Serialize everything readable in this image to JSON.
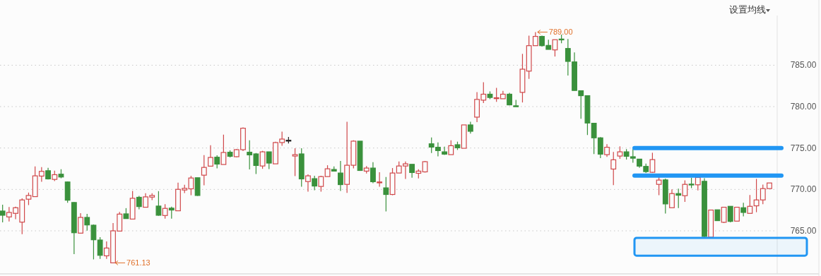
{
  "chart_data": {
    "type": "candlestick",
    "categories": [
      null,
      null,
      null,
      null,
      null,
      null,
      null,
      null,
      null,
      null,
      null,
      null,
      null,
      null,
      null,
      null,
      null,
      null,
      null,
      null,
      null,
      null,
      null,
      null,
      null,
      null,
      null,
      null,
      null,
      null,
      null,
      null,
      null,
      null,
      null,
      null,
      null,
      null,
      null,
      null,
      null,
      null,
      null,
      null,
      null,
      null,
      null,
      null,
      null,
      null,
      null,
      null,
      null,
      null,
      null,
      null,
      null,
      null,
      null,
      null,
      null,
      null,
      null,
      null,
      null,
      null,
      null,
      null,
      null,
      null,
      null,
      null,
      null,
      null,
      null,
      null,
      null,
      null,
      null,
      null,
      null,
      null,
      null,
      null,
      null,
      null,
      null,
      null,
      null,
      null,
      null,
      null,
      null,
      null,
      null,
      null,
      null,
      null,
      null,
      null,
      null,
      null,
      null,
      null,
      null,
      null,
      null,
      null,
      null,
      null,
      null,
      null,
      null,
      null,
      null,
      null,
      null,
      null,
      null
    ],
    "ohlc": [
      [
        767.39,
        768.16,
        766.03,
        766.88
      ],
      [
        766.68,
        767.88,
        766.14,
        767.22
      ],
      [
        767.11,
        767.93,
        766.4,
        767.79
      ],
      [
        766.05,
        768.93,
        764.6,
        768.73
      ],
      [
        768.82,
        769.62,
        768.11,
        769.27
      ],
      [
        769.13,
        772.78,
        769.13,
        771.64
      ],
      [
        771.61,
        772.69,
        770.93,
        772.18
      ],
      [
        772.26,
        772.61,
        771.21,
        771.27
      ],
      [
        771.21,
        772.26,
        771.01,
        771.78
      ],
      [
        771.84,
        772.44,
        771.35,
        771.5
      ],
      [
        770.9,
        770.95,
        768.39,
        768.7
      ],
      [
        768.42,
        768.48,
        762.18,
        764.77
      ],
      [
        764.72,
        767.14,
        764.69,
        766.62
      ],
      [
        766.62,
        767.05,
        765.03,
        765.71
      ],
      [
        765.68,
        765.77,
        761.55,
        763.92
      ],
      [
        763.89,
        764.23,
        761.61,
        762.04
      ],
      [
        761.98,
        763.72,
        761.61,
        762.92
      ],
      [
        761.13,
        765.94,
        761.13,
        765.0
      ],
      [
        764.97,
        767.28,
        764.97,
        767.02
      ],
      [
        767.05,
        767.74,
        766.48,
        766.48
      ],
      [
        766.42,
        769.81,
        766.42,
        768.93
      ],
      [
        769.05,
        769.22,
        767.59,
        767.93
      ],
      [
        767.85,
        769.53,
        767.85,
        769.1
      ],
      [
        769.07,
        769.53,
        768.7,
        769.27
      ],
      [
        767.99,
        769.79,
        766.82,
        766.88
      ],
      [
        766.85,
        768.22,
        766.48,
        767.71
      ],
      [
        767.74,
        767.91,
        766.48,
        767.51
      ],
      [
        767.42,
        770.81,
        767.42,
        770.01
      ],
      [
        769.93,
        770.56,
        769.56,
        770.13
      ],
      [
        770.07,
        771.64,
        769.3,
        771.38
      ],
      [
        771.41,
        771.41,
        769.22,
        769.27
      ],
      [
        771.72,
        774.15,
        770.5,
        772.66
      ],
      [
        772.81,
        775.34,
        772.75,
        773.86
      ],
      [
        773.89,
        774.12,
        772.55,
        773.06
      ],
      [
        773.01,
        776.62,
        773.01,
        774.46
      ],
      [
        774.49,
        774.72,
        773.86,
        774.0
      ],
      [
        773.95,
        774.86,
        773.89,
        774.8
      ],
      [
        774.8,
        777.48,
        774.63,
        777.39
      ],
      [
        774.49,
        775.94,
        772.41,
        774.17
      ],
      [
        774.29,
        774.4,
        771.87,
        772.89
      ],
      [
        772.83,
        774.66,
        772.49,
        774.54
      ],
      [
        774.54,
        774.54,
        772.46,
        773.18
      ],
      [
        773.09,
        775.77,
        773.09,
        775.66
      ],
      [
        775.66,
        776.97,
        775.28,
        776.08
      ],
      [
        775.94,
        776.34,
        775.54,
        775.94
      ],
      [
        774.03,
        774.97,
        771.61,
        774.2
      ],
      [
        774.29,
        774.97,
        770.33,
        771.27
      ],
      [
        770.95,
        771.81,
        769.73,
        771.64
      ],
      [
        771.3,
        771.64,
        769.9,
        770.41
      ],
      [
        770.36,
        771.64,
        769.73,
        771.55
      ],
      [
        771.55,
        772.92,
        771.55,
        772.49
      ],
      [
        772.41,
        772.78,
        772.21,
        772.21
      ],
      [
        771.98,
        773.43,
        769.81,
        770.58
      ],
      [
        770.61,
        778.16,
        769.59,
        772.92
      ],
      [
        772.92,
        775.94,
        772.55,
        775.83
      ],
      [
        775.83,
        775.83,
        772.24,
        772.29
      ],
      [
        772.21,
        772.83,
        771.92,
        772.58
      ],
      [
        772.58,
        773.29,
        770.75,
        770.93
      ],
      [
        770.84,
        772.07,
        770.33,
        770.9
      ],
      [
        770.19,
        771.5,
        767.34,
        769.39
      ],
      [
        769.39,
        772.58,
        769.3,
        771.98
      ],
      [
        771.98,
        773.38,
        771.98,
        772.83
      ],
      [
        772.83,
        773.38,
        771.27,
        773.09
      ],
      [
        773.03,
        773.03,
        771.41,
        772.04
      ],
      [
        771.95,
        772.44,
        771.32,
        772.21
      ],
      [
        772.12,
        773.43,
        772.04,
        773.35
      ],
      [
        775.51,
        776.28,
        774.4,
        775.11
      ],
      [
        775.09,
        775.68,
        774.0,
        774.69
      ],
      [
        774.54,
        775.17,
        774.17,
        774.26
      ],
      [
        774.2,
        775.94,
        774.2,
        775.28
      ],
      [
        775.4,
        775.77,
        774.77,
        775.03
      ],
      [
        774.97,
        777.79,
        774.97,
        777.79
      ],
      [
        777.79,
        778.16,
        776.74,
        777.02
      ],
      [
        778.73,
        781.75,
        778.13,
        780.87
      ],
      [
        780.78,
        782.95,
        780.44,
        781.5
      ],
      [
        781.5,
        781.84,
        780.9,
        781.1
      ],
      [
        781.01,
        782.26,
        780.58,
        781.07
      ],
      [
        780.95,
        781.89,
        780.95,
        781.5
      ],
      [
        781.5,
        781.67,
        780.16,
        780.21
      ],
      [
        780.1,
        780.81,
        779.99,
        779.99
      ],
      [
        781.72,
        786.37,
        780.5,
        784.52
      ],
      [
        784.29,
        788.56,
        783.35,
        787.36
      ],
      [
        787.36,
        789.0,
        787.36,
        788.48
      ],
      [
        788.48,
        788.56,
        787.25,
        787.36
      ],
      [
        787.39,
        788.08,
        786.91,
        786.91
      ],
      [
        786.85,
        788.08,
        786.05,
        788.08
      ],
      [
        788.16,
        788.7,
        787.65,
        788.13
      ],
      [
        787.02,
        788.16,
        783.75,
        785.46
      ],
      [
        785.4,
        786.54,
        781.95,
        781.95
      ],
      [
        781.92,
        781.92,
        778.53,
        781.32
      ],
      [
        781.32,
        781.32,
        776.57,
        778.02
      ],
      [
        777.99,
        778.05,
        774.26,
        776.23
      ],
      [
        776.23,
        776.31,
        773.77,
        774.26
      ],
      [
        774.2,
        775.46,
        773.92,
        775.09
      ],
      [
        772.46,
        774.52,
        770.53,
        773.58
      ],
      [
        774.03,
        775.2,
        773.69,
        774.54
      ],
      [
        774.54,
        774.86,
        773.6,
        774.0
      ],
      [
        773.95,
        774.86,
        773.23,
        773.77
      ],
      [
        773.66,
        773.66,
        772.61,
        772.81
      ],
      [
        772.78,
        773.12,
        771.98,
        772.15
      ],
      [
        772.07,
        774.43,
        772.01,
        773.6
      ],
      [
        770.61,
        771.58,
        769.3,
        771.13
      ],
      [
        771.15,
        771.3,
        767.08,
        768.25
      ],
      [
        767.79,
        770.01,
        767.79,
        769.5
      ],
      [
        769.5,
        770.1,
        767.74,
        769.3
      ],
      [
        769.24,
        771.1,
        768.5,
        770.61
      ],
      [
        770.64,
        771.41,
        770.16,
        770.58
      ],
      [
        770.56,
        771.44,
        769.87,
        771.44
      ],
      [
        770.98,
        771.35,
        764.23,
        764.32
      ],
      [
        764.23,
        767.51,
        764.17,
        767.51
      ],
      [
        767.54,
        767.54,
        766.23,
        766.23
      ],
      [
        766.03,
        767.85,
        765.94,
        767.85
      ],
      [
        767.96,
        767.96,
        766.03,
        766.14
      ],
      [
        766.17,
        767.85,
        766.17,
        767.85
      ],
      [
        767.79,
        768.39,
        766.74,
        767.22
      ],
      [
        767.11,
        769.33,
        767.11,
        767.96
      ],
      [
        768.02,
        771.27,
        767.25,
        768.73
      ],
      [
        768.73,
        770.58,
        768.22,
        770.1
      ],
      [
        770.1,
        770.78,
        770.1,
        770.78
      ]
    ],
    "colors": [
      "#3a913c",
      "#d0484a",
      "#d0484a",
      "#d0484a",
      "#d0484a",
      "#d0484a",
      "#d0484a",
      "#3a913c",
      "#d0484a",
      "#3a913c",
      "#3a913c",
      "#3a913c",
      "#d0484a",
      "#3a913c",
      "#3a913c",
      "#3a913c",
      "#d0484a",
      "#d0484a",
      "#d0484a",
      "#3a913c",
      "#d0484a",
      "#3a913c",
      "#d0484a",
      "#d0484a",
      "#3a913c",
      "#d0484a",
      "#3a913c",
      "#d0484a",
      "#d0484a",
      "#d0484a",
      "#3a913c",
      "#d0484a",
      "#d0484a",
      "#3a913c",
      "#d0484a",
      "#3a913c",
      "#d0484a",
      "#d0484a",
      "#3a913c",
      "#3a913c",
      "#d0484a",
      "#3a913c",
      "#d0484a",
      "#d0484a",
      "#222222",
      "#d0484a",
      "#3a913c",
      "#d0484a",
      "#3a913c",
      "#d0484a",
      "#d0484a",
      "#3a913c",
      "#3a913c",
      "#d0484a",
      "#d0484a",
      "#3a913c",
      "#d0484a",
      "#3a913c",
      "#d0484a",
      "#3a913c",
      "#d0484a",
      "#d0484a",
      "#d0484a",
      "#3a913c",
      "#d0484a",
      "#d0484a",
      "#3a913c",
      "#3a913c",
      "#3a913c",
      "#d0484a",
      "#3a913c",
      "#d0484a",
      "#3a913c",
      "#d0484a",
      "#d0484a",
      "#3a913c",
      "#d0484a",
      "#d0484a",
      "#3a913c",
      "#3a913c",
      "#d0484a",
      "#d0484a",
      "#d0484a",
      "#3a913c",
      "#3a913c",
      "#d0484a",
      "#3a913c",
      "#3a913c",
      "#3a913c",
      "#3a913c",
      "#3a913c",
      "#3a913c",
      "#3a913c",
      "#d0484a",
      "#d0484a",
      "#d0484a",
      "#3a913c",
      "#3a913c",
      "#3a913c",
      "#3a913c",
      "#d0484a",
      "#d0484a",
      "#3a913c",
      "#d0484a",
      "#3a913c",
      "#d0484a",
      "#3a913c",
      "#d0484a",
      "#3a913c",
      "#d0484a",
      "#3a913c",
      "#d0484a",
      "#3a913c",
      "#d0484a",
      "#3a913c",
      "#d0484a",
      "#d0484a",
      "#d0484a",
      "#d0484a"
    ],
    "ylim": [
      759.8,
      791.0
    ],
    "yticks": [
      {
        "value": 765,
        "label": "765.00"
      },
      {
        "value": 770,
        "label": "770.00"
      },
      {
        "value": 775,
        "label": "775.00"
      },
      {
        "value": 780,
        "label": "780.00"
      },
      {
        "value": 785,
        "label": "785.00"
      }
    ],
    "grid": "y",
    "tick_labels": "y",
    "ref_lines": [
      {
        "axis": "y",
        "value": 775.0,
        "color": "#2196f3"
      },
      {
        "axis": "y",
        "value": 771.67,
        "color": "#2196f3"
      }
    ],
    "bands": [
      {
        "axis": "y",
        "from": 762.0,
        "to": 764.15,
        "color": "#2196f3"
      }
    ],
    "annotations": [
      {
        "text": "789.00",
        "y": 789.0
      },
      "761.13",
      "设置均线"
    ]
  }
}
